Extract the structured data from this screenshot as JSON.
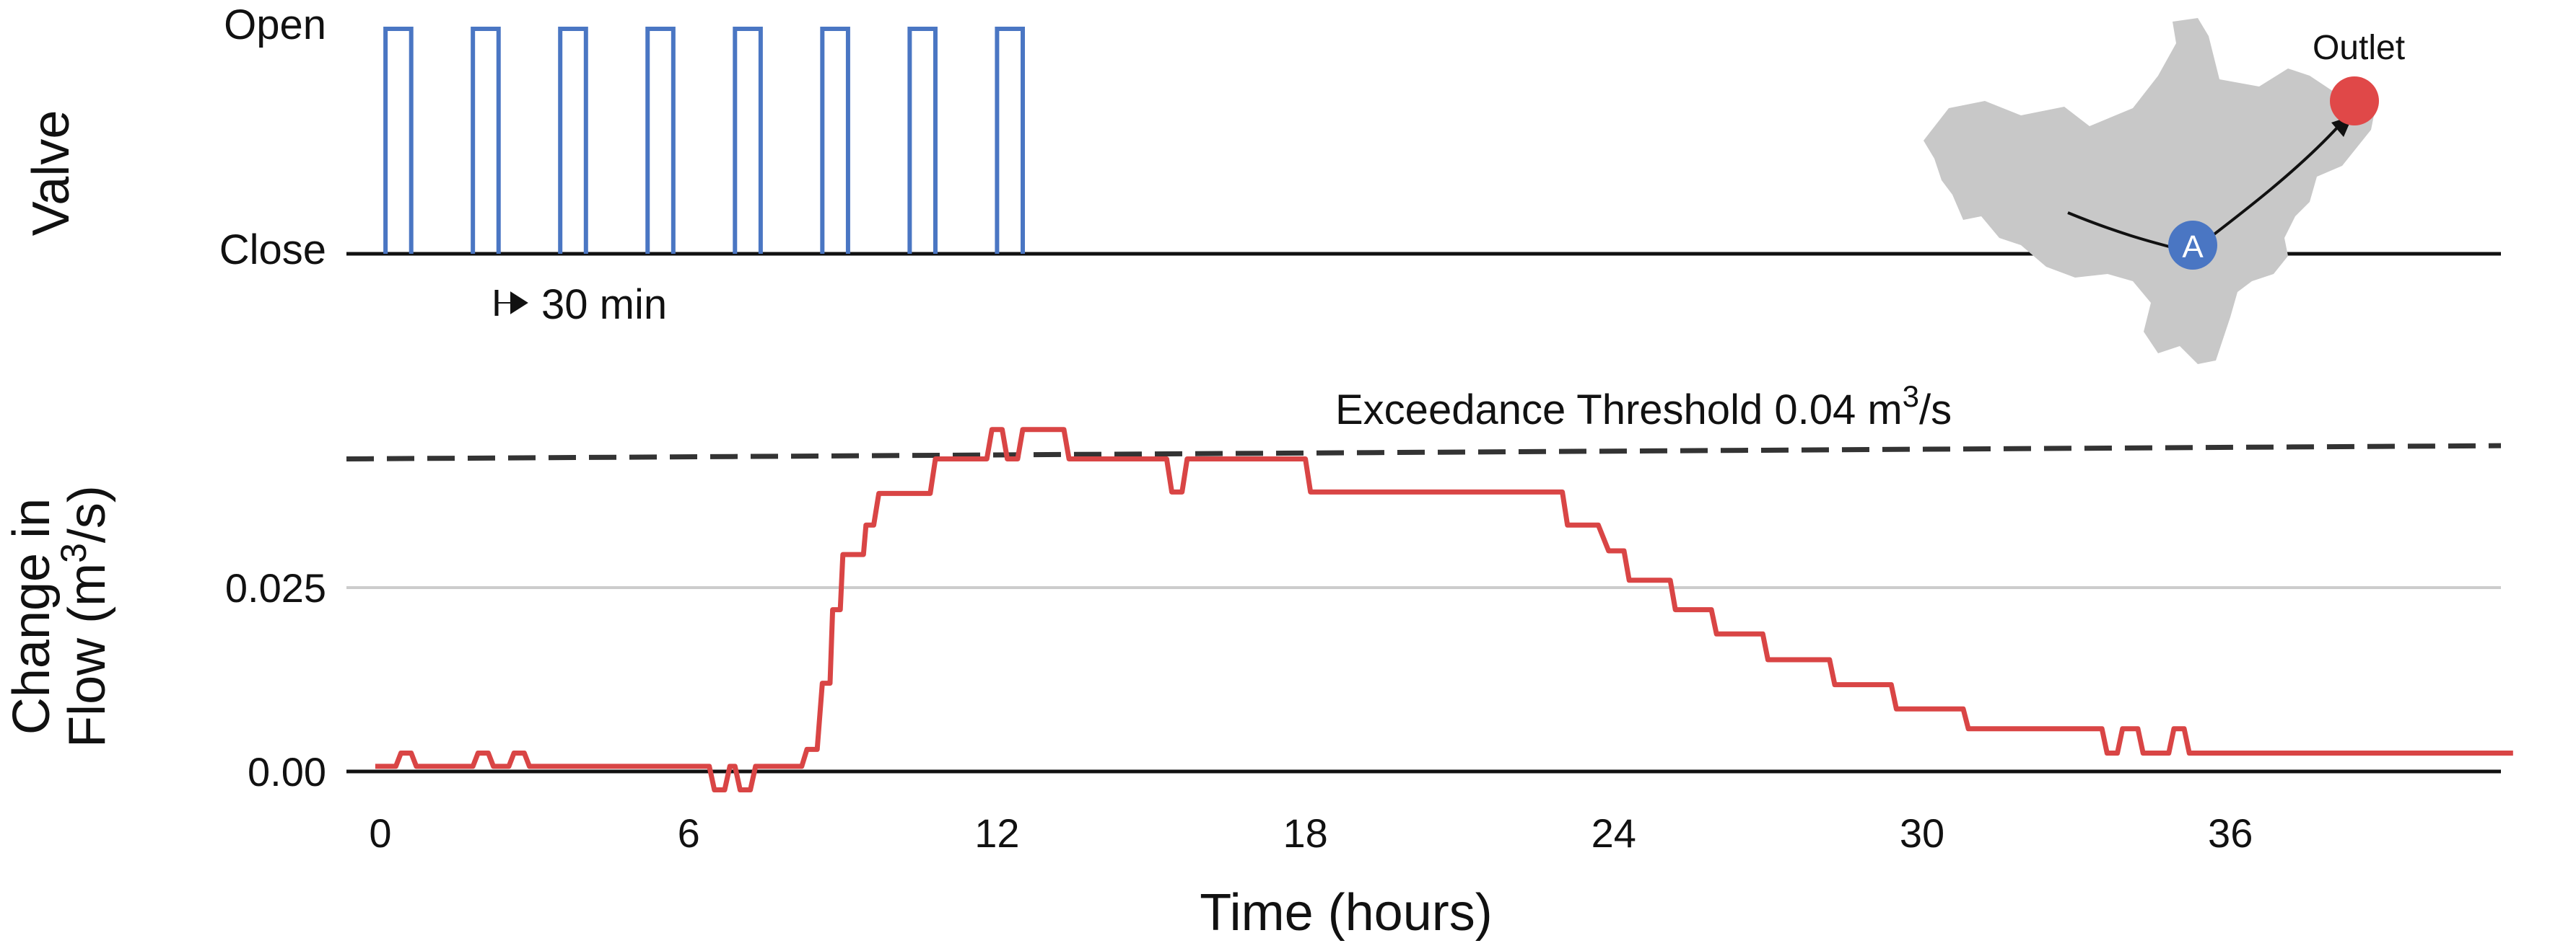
{
  "valve_panel": {
    "ylabel": "Valve",
    "open_label": "Open",
    "close_label": "Close",
    "pulse_label": "30 min",
    "pulse_color": "#4a76c3",
    "pulses_start_hours": [
      0.1,
      1.8,
      3.5,
      5.2,
      6.9,
      8.6,
      10.3,
      12.0
    ],
    "pulse_width_hours": 0.5
  },
  "map_inset": {
    "outlet_label": "Outlet",
    "site_label": "A",
    "outlet_color": "#e04848",
    "site_color": "#4a76c3",
    "shape_color": "#c8c8c8"
  },
  "chart_data": {
    "type": "line",
    "title": "",
    "xlabel": "Time (hours)",
    "ylabel_line1": "Change in",
    "ylabel_line2_prefix": "Flow  (m",
    "ylabel_line2_sup": "3",
    "ylabel_line2_suffix": "/s)",
    "xlim": [
      -0.3,
      42
    ],
    "ylim": [
      0,
      0.05
    ],
    "xticks": [
      0,
      6,
      12,
      18,
      24,
      30,
      36
    ],
    "xtick_labels": [
      "0",
      "6",
      "12",
      "18",
      "24",
      "30",
      "36"
    ],
    "yticks": [
      0.0,
      0.025
    ],
    "ytick_labels": [
      "0.00",
      "0.025"
    ],
    "threshold": {
      "label_prefix": "Exceedance Threshold 0.04 m",
      "label_sup": "3",
      "label_suffix": "/s",
      "y_start": 0.0425,
      "y_end": 0.0443,
      "color": "#333333"
    },
    "series": [
      {
        "color": "#d94545",
        "points": [
          [
            -0.1,
            0.0007
          ],
          [
            0.3,
            0.0007
          ],
          [
            0.4,
            0.0025
          ],
          [
            0.6,
            0.0025
          ],
          [
            0.7,
            0.0007
          ],
          [
            1.8,
            0.0007
          ],
          [
            1.9,
            0.0025
          ],
          [
            2.1,
            0.0025
          ],
          [
            2.2,
            0.0007
          ],
          [
            2.5,
            0.0007
          ],
          [
            2.6,
            0.0025
          ],
          [
            2.8,
            0.0025
          ],
          [
            2.9,
            0.0007
          ],
          [
            6.4,
            0.0007
          ],
          [
            6.5,
            -0.0025
          ],
          [
            6.7,
            -0.0025
          ],
          [
            6.8,
            0.0007
          ],
          [
            6.9,
            0.0007
          ],
          [
            7.0,
            -0.0025
          ],
          [
            7.2,
            -0.0025
          ],
          [
            7.3,
            0.0007
          ],
          [
            8.2,
            0.0007
          ],
          [
            8.3,
            0.003
          ],
          [
            8.5,
            0.003
          ],
          [
            8.6,
            0.012
          ],
          [
            8.75,
            0.012
          ],
          [
            8.8,
            0.022
          ],
          [
            8.95,
            0.022
          ],
          [
            9.0,
            0.0295
          ],
          [
            9.4,
            0.0295
          ],
          [
            9.45,
            0.0335
          ],
          [
            9.6,
            0.0335
          ],
          [
            9.7,
            0.0378
          ],
          [
            10.7,
            0.0378
          ],
          [
            10.8,
            0.0425
          ],
          [
            11.8,
            0.0425
          ],
          [
            11.9,
            0.0465
          ],
          [
            12.1,
            0.0465
          ],
          [
            12.2,
            0.0425
          ],
          [
            12.4,
            0.0425
          ],
          [
            12.5,
            0.0465
          ],
          [
            13.3,
            0.0465
          ],
          [
            13.4,
            0.0425
          ],
          [
            15.3,
            0.0425
          ],
          [
            15.4,
            0.038
          ],
          [
            15.6,
            0.038
          ],
          [
            15.7,
            0.0425
          ],
          [
            18.0,
            0.0425
          ],
          [
            18.1,
            0.038
          ],
          [
            23.0,
            0.038
          ],
          [
            23.1,
            0.0335
          ],
          [
            23.7,
            0.0335
          ],
          [
            23.9,
            0.03
          ],
          [
            24.2,
            0.03
          ],
          [
            24.3,
            0.026
          ],
          [
            25.1,
            0.026
          ],
          [
            25.2,
            0.022
          ],
          [
            25.9,
            0.022
          ],
          [
            26.0,
            0.0187
          ],
          [
            26.9,
            0.0187
          ],
          [
            27.0,
            0.0152
          ],
          [
            28.2,
            0.0152
          ],
          [
            28.3,
            0.0118
          ],
          [
            29.4,
            0.0118
          ],
          [
            29.5,
            0.0085
          ],
          [
            30.8,
            0.0085
          ],
          [
            30.9,
            0.0058
          ],
          [
            33.5,
            0.0058
          ],
          [
            33.6,
            0.0025
          ],
          [
            33.8,
            0.0025
          ],
          [
            33.9,
            0.0058
          ],
          [
            34.2,
            0.0058
          ],
          [
            34.3,
            0.0025
          ],
          [
            34.8,
            0.0025
          ],
          [
            34.9,
            0.0058
          ],
          [
            35.1,
            0.0058
          ],
          [
            35.2,
            0.0025
          ],
          [
            41.5,
            0.0025
          ]
        ]
      }
    ],
    "grid": true
  }
}
